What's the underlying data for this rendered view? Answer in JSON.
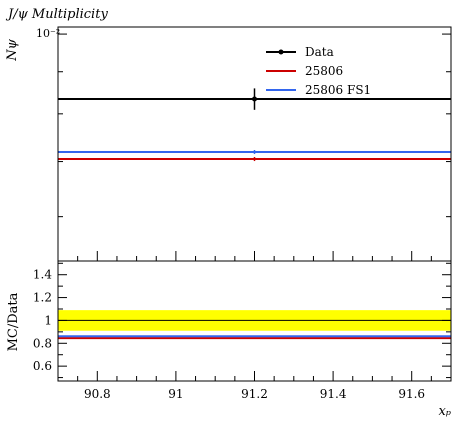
{
  "chart_data": [
    {
      "type": "line",
      "title": "J/ψ Multiplicity",
      "ylabel": "Nψ",
      "y_scale": "log",
      "y_exponent_label": "10⁻²",
      "xlim": [
        90.7,
        91.7
      ],
      "ylim": [
        0.0053,
        0.0102
      ],
      "legend_placement": "top-right",
      "series": [
        {
          "name": "Data",
          "color": "#000000",
          "marker": "point",
          "x": [
            91.2
          ],
          "y": [
            0.00834
          ],
          "yerr": [
            0.00025
          ]
        },
        {
          "name": "25806",
          "color": "#cc0000",
          "x": [
            91.2
          ],
          "y": [
            0.00705
          ],
          "yerr": [
            4e-05
          ]
        },
        {
          "name": "25806 FS1",
          "color": "#3366ee",
          "x": [
            91.2
          ],
          "y": [
            0.00719
          ],
          "yerr": [
            4e-05
          ]
        }
      ]
    },
    {
      "type": "line",
      "ylabel": "MC/Data",
      "xlabel": "xₚ",
      "xlim": [
        90.7,
        91.7
      ],
      "ylim": [
        0.47,
        1.52
      ],
      "y_ticks": [
        "0.6",
        "0.8",
        "1",
        "1.2",
        "1.4"
      ],
      "x_ticks": [
        "90.8",
        "91",
        "91.2",
        "91.4",
        "91.6"
      ],
      "band": {
        "low": 0.91,
        "high": 1.09,
        "color": "#ffff00"
      },
      "reference_line": 1.0,
      "series": [
        {
          "name": "25806",
          "color": "#cc0000",
          "x": [
            91.2
          ],
          "y": [
            0.845
          ]
        },
        {
          "name": "25806 FS1",
          "color": "#3366ee",
          "x": [
            91.2
          ],
          "y": [
            0.862
          ]
        }
      ]
    }
  ]
}
